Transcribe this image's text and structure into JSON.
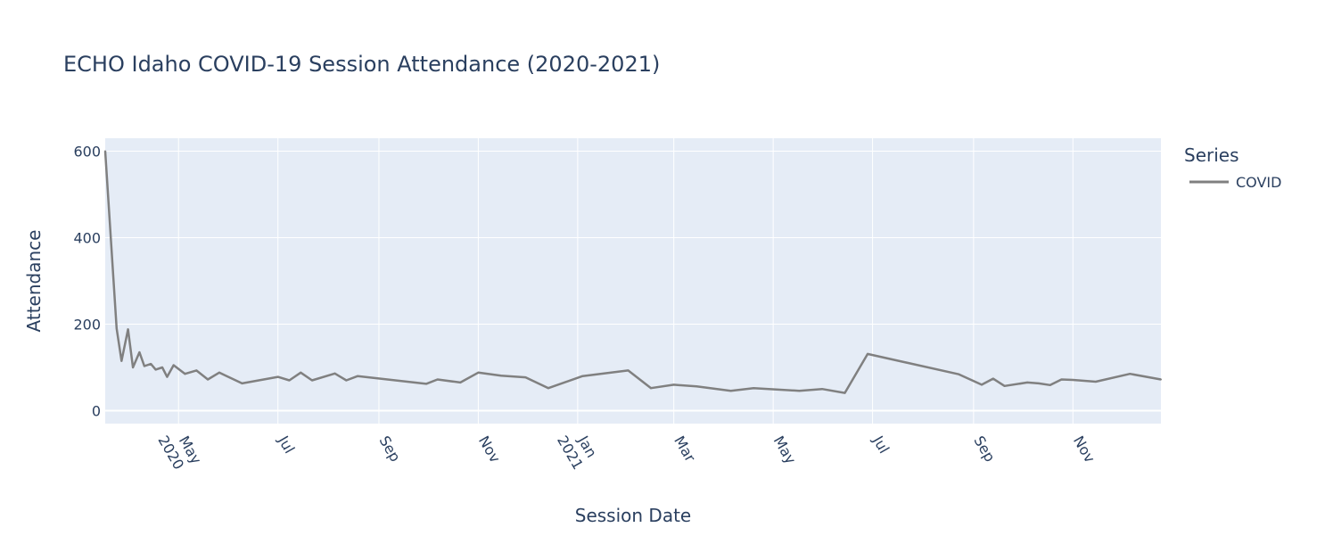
{
  "chart_data": {
    "type": "line",
    "title": "ECHO Idaho COVID-19 Session Attendance (2020-2021)",
    "xlabel": "Session Date",
    "ylabel": "Attendance",
    "ylim": [
      -30,
      630
    ],
    "xlim": [
      "2020-03-17",
      "2021-12-25"
    ],
    "grid": true,
    "legend": {
      "title": "Series",
      "placement": "top-right"
    },
    "y_ticks": [
      {
        "value": 0,
        "label": "0"
      },
      {
        "value": 200,
        "label": "200"
      },
      {
        "value": 400,
        "label": "400"
      },
      {
        "value": 600,
        "label": "600"
      }
    ],
    "x_ticks": [
      {
        "date": "2020-05-01",
        "label": "May",
        "sublabel": "2020"
      },
      {
        "date": "2020-07-01",
        "label": "Jul",
        "sublabel": ""
      },
      {
        "date": "2020-09-01",
        "label": "Sep",
        "sublabel": ""
      },
      {
        "date": "2020-11-01",
        "label": "Nov",
        "sublabel": ""
      },
      {
        "date": "2021-01-01",
        "label": "Jan",
        "sublabel": "2021"
      },
      {
        "date": "2021-03-01",
        "label": "Mar",
        "sublabel": ""
      },
      {
        "date": "2021-05-01",
        "label": "May",
        "sublabel": ""
      },
      {
        "date": "2021-07-01",
        "label": "Jul",
        "sublabel": ""
      },
      {
        "date": "2021-09-01",
        "label": "Sep",
        "sublabel": ""
      },
      {
        "date": "2021-11-01",
        "label": "Nov",
        "sublabel": ""
      }
    ],
    "series": [
      {
        "name": "COVID",
        "color": "#808080",
        "points": [
          [
            "2020-03-17",
            600
          ],
          [
            "2020-03-24",
            190
          ],
          [
            "2020-03-27",
            115
          ],
          [
            "2020-03-31",
            188
          ],
          [
            "2020-04-03",
            100
          ],
          [
            "2020-04-07",
            135
          ],
          [
            "2020-04-10",
            103
          ],
          [
            "2020-04-14",
            108
          ],
          [
            "2020-04-17",
            95
          ],
          [
            "2020-04-21",
            100
          ],
          [
            "2020-04-24",
            78
          ],
          [
            "2020-04-28",
            105
          ],
          [
            "2020-05-05",
            85
          ],
          [
            "2020-05-12",
            93
          ],
          [
            "2020-05-19",
            72
          ],
          [
            "2020-05-26",
            88
          ],
          [
            "2020-06-09",
            63
          ],
          [
            "2020-07-01",
            78
          ],
          [
            "2020-07-08",
            70
          ],
          [
            "2020-07-15",
            88
          ],
          [
            "2020-07-22",
            70
          ],
          [
            "2020-08-05",
            86
          ],
          [
            "2020-08-12",
            70
          ],
          [
            "2020-08-19",
            80
          ],
          [
            "2020-09-30",
            62
          ],
          [
            "2020-10-07",
            72
          ],
          [
            "2020-10-21",
            65
          ],
          [
            "2020-11-01",
            88
          ],
          [
            "2020-11-15",
            81
          ],
          [
            "2020-11-30",
            77
          ],
          [
            "2020-12-14",
            52
          ],
          [
            "2021-01-04",
            80
          ],
          [
            "2021-02-01",
            93
          ],
          [
            "2021-02-15",
            52
          ],
          [
            "2021-03-01",
            60
          ],
          [
            "2021-03-15",
            56
          ],
          [
            "2021-04-05",
            46
          ],
          [
            "2021-04-19",
            52
          ],
          [
            "2021-05-17",
            46
          ],
          [
            "2021-05-31",
            50
          ],
          [
            "2021-06-14",
            41
          ],
          [
            "2021-06-28",
            131
          ],
          [
            "2021-08-23",
            84
          ],
          [
            "2021-09-06",
            60
          ],
          [
            "2021-09-13",
            74
          ],
          [
            "2021-09-20",
            57
          ],
          [
            "2021-10-04",
            65
          ],
          [
            "2021-10-11",
            63
          ],
          [
            "2021-10-18",
            59
          ],
          [
            "2021-10-25",
            72
          ],
          [
            "2021-11-01",
            71
          ],
          [
            "2021-11-15",
            67
          ],
          [
            "2021-12-06",
            85
          ],
          [
            "2021-12-25",
            72
          ]
        ]
      }
    ]
  }
}
